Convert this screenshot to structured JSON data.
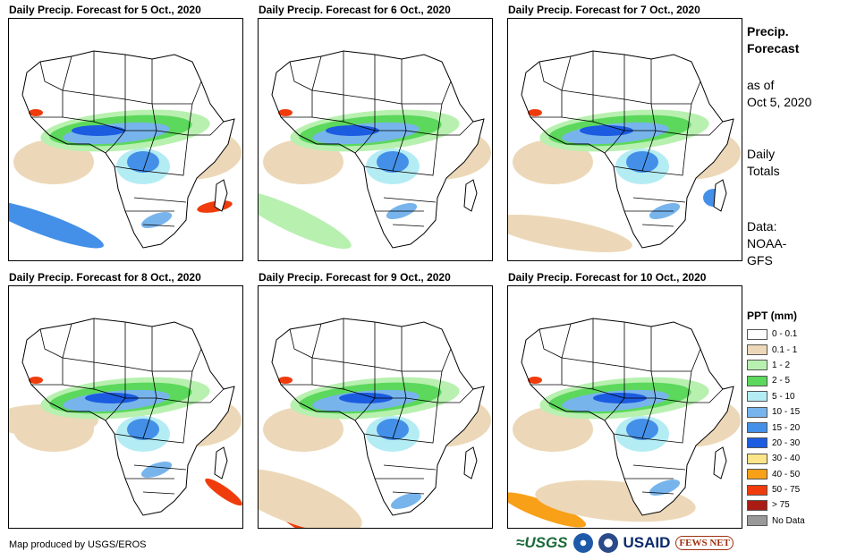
{
  "panels": [
    {
      "title": "Daily Precip. Forecast for 5 Oct., 2020"
    },
    {
      "title": "Daily Precip. Forecast for 6 Oct., 2020"
    },
    {
      "title": "Daily Precip. Forecast for 7 Oct., 2020"
    },
    {
      "title": "Daily Precip. Forecast for 8 Oct., 2020"
    },
    {
      "title": "Daily Precip. Forecast for 9 Oct., 2020"
    },
    {
      "title": "Daily Precip. Forecast for 10 Oct., 2020"
    }
  ],
  "sidebar": {
    "heading1": "Precip.",
    "heading2": "Forecast",
    "asof1": "as of",
    "asof2": "Oct 5, 2020",
    "totals1": "Daily",
    "totals2": "Totals",
    "data1": "Data:",
    "data2": "NOAA-",
    "data3": "GFS"
  },
  "legend": {
    "title": "PPT (mm)",
    "items": [
      {
        "label": "0 - 0.1",
        "color": "#ffffff"
      },
      {
        "label": "0.1 - 1",
        "color": "#ecd8b8"
      },
      {
        "label": "1 - 2",
        "color": "#b8f0b0"
      },
      {
        "label": "2 - 5",
        "color": "#5cd85c"
      },
      {
        "label": "5 - 10",
        "color": "#b4ecf4"
      },
      {
        "label": "10 - 15",
        "color": "#78b4ec"
      },
      {
        "label": "15 - 20",
        "color": "#4490e8"
      },
      {
        "label": "20 - 30",
        "color": "#1c5ce0"
      },
      {
        "label": "30 - 40",
        "color": "#fce488"
      },
      {
        "label": "40 - 50",
        "color": "#f8a018"
      },
      {
        "label": "50 - 75",
        "color": "#f03c0c"
      },
      {
        "label": "> 75",
        "color": "#a81c14"
      },
      {
        "label": "No Data",
        "color": "#999999"
      }
    ]
  },
  "footer": {
    "credit": "Map produced by USGS/EROS",
    "logo_usgs": "≈USGS",
    "logo_usaid": "USAID",
    "logo_fews": "FEWS NET"
  }
}
